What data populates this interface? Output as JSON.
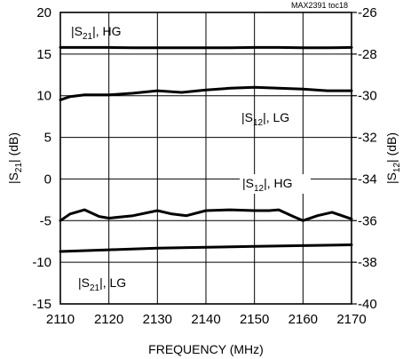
{
  "chart_data": {
    "type": "line",
    "figure_ref": "MAX2391 toc18",
    "xlabel": "FREQUENCY (MHz)",
    "ylabel_left": "|S21| (dB)",
    "ylabel_right": "|S12| (dB)",
    "xlim": [
      2110,
      2170
    ],
    "ylim_left": [
      -15,
      20
    ],
    "ylim_right": [
      -40,
      -26
    ],
    "grid": true,
    "x_ticks": [
      2110,
      2120,
      2130,
      2140,
      2150,
      2160,
      2170
    ],
    "y_left_ticks": [
      20,
      15,
      10,
      5,
      0,
      -5,
      -10,
      -15
    ],
    "y_right_ticks": [
      -26,
      -28,
      -30,
      -32,
      -34,
      -36,
      -38,
      -40
    ],
    "annotations": [
      {
        "base": "|S",
        "sub": "21",
        "tail": "|, HG"
      },
      {
        "base": "|S",
        "sub": "12",
        "tail": "|, LG"
      },
      {
        "base": "|S",
        "sub": "12",
        "tail": "|, HG"
      },
      {
        "base": "|S",
        "sub": "21",
        "tail": "|, LG"
      }
    ],
    "series": [
      {
        "axis": "left",
        "x": [
          2110,
          2115,
          2120,
          2125,
          2130,
          2135,
          2140,
          2145,
          2150,
          2155,
          2160,
          2165,
          2170
        ],
        "y": [
          15.8,
          15.8,
          15.8,
          15.75,
          15.75,
          15.75,
          15.75,
          15.75,
          15.8,
          15.8,
          15.75,
          15.75,
          15.8
        ]
      },
      {
        "axis": "left",
        "x": [
          2110,
          2112,
          2115,
          2120,
          2125,
          2130,
          2135,
          2140,
          2145,
          2150,
          2155,
          2160,
          2165,
          2170
        ],
        "y": [
          9.5,
          9.9,
          10.1,
          10.1,
          10.3,
          10.6,
          10.4,
          10.7,
          10.9,
          11.0,
          10.9,
          10.8,
          10.6,
          10.6
        ]
      },
      {
        "axis": "left",
        "x": [
          2110,
          2112,
          2115,
          2118,
          2120,
          2125,
          2130,
          2133,
          2136,
          2140,
          2145,
          2150,
          2153,
          2155,
          2158,
          2160,
          2163,
          2166,
          2170
        ],
        "y": [
          -5.0,
          -4.2,
          -3.7,
          -4.5,
          -4.7,
          -4.4,
          -3.8,
          -4.2,
          -4.4,
          -3.8,
          -3.7,
          -3.8,
          -3.8,
          -3.7,
          -4.5,
          -5.0,
          -4.4,
          -4.0,
          -4.8
        ]
      },
      {
        "axis": "left",
        "x": [
          2110,
          2120,
          2130,
          2140,
          2150,
          2160,
          2170
        ],
        "y": [
          -8.7,
          -8.5,
          -8.3,
          -8.2,
          -8.1,
          -8.0,
          -7.9
        ]
      }
    ]
  }
}
